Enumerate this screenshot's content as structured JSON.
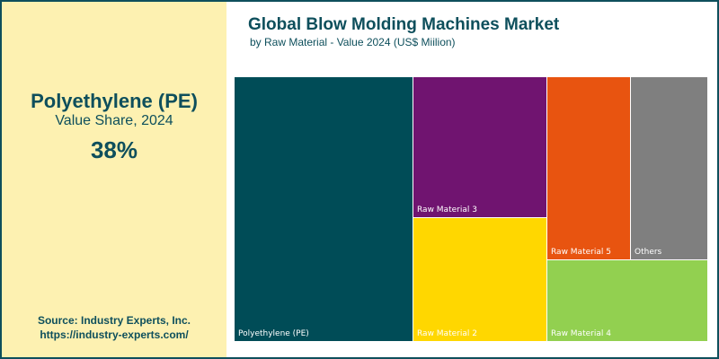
{
  "highlight": {
    "name": "Polyethylene (PE)",
    "subtitle": "Value Share, 2024",
    "value": "38%"
  },
  "source": {
    "line1": "Source: Industry Experts, Inc.",
    "line2": "https://industry-experts.com/"
  },
  "chart_data": {
    "type": "treemap",
    "title": "Global Blow Molding Machines Market",
    "subtitle": "by Raw Material - Value 2024 (US$ Miilion)",
    "series": [
      {
        "name": "Polyethylene (PE)",
        "share": 38,
        "color": "#004c57"
      },
      {
        "name": "Raw Material 3",
        "share": 18,
        "color": "#701470"
      },
      {
        "name": "Raw Material 2",
        "share": 15.5,
        "color": "#ffd700"
      },
      {
        "name": "Raw Material 5",
        "share": 11,
        "color": "#e85410"
      },
      {
        "name": "Raw Material 4",
        "share": 9.5,
        "color": "#92d050"
      },
      {
        "name": "Others",
        "share": 8,
        "color": "#7f7f7f"
      }
    ]
  }
}
